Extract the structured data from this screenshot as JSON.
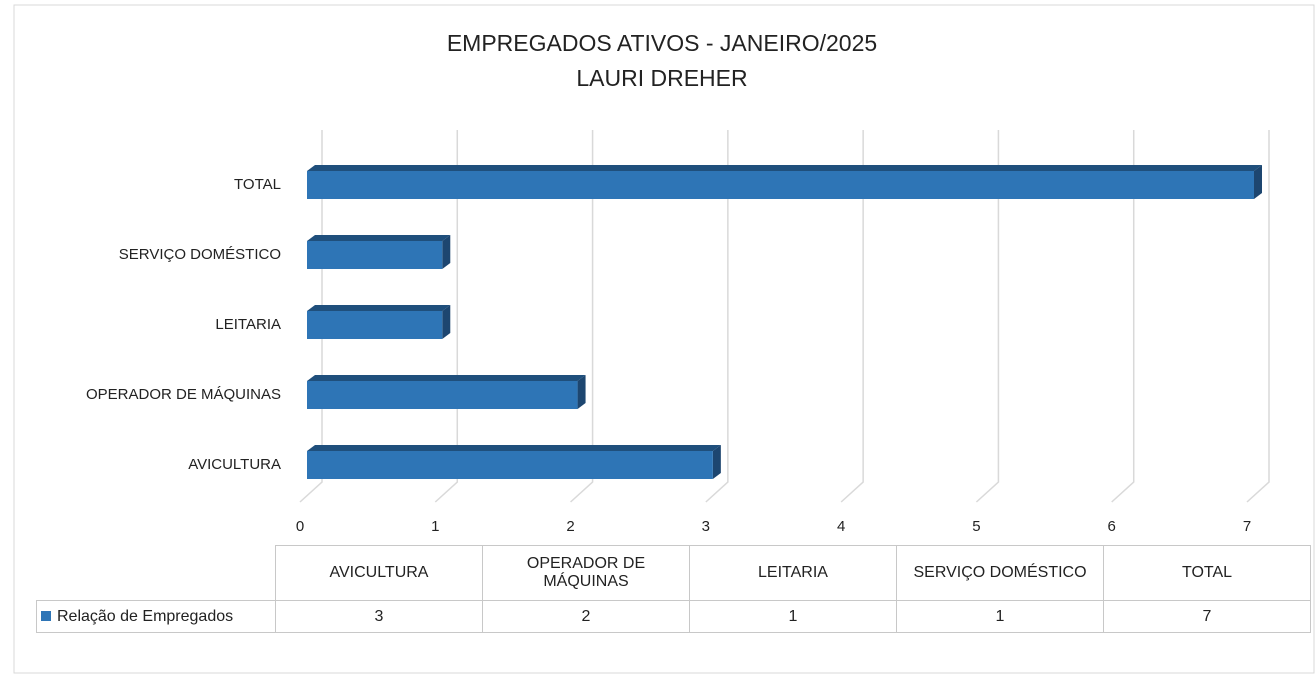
{
  "chart_data": {
    "type": "bar",
    "orientation": "horizontal",
    "title": "EMPREGADOS ATIVOS  - JANEIRO/2025",
    "subtitle": "LAURI DREHER",
    "categories": [
      "AVICULTURA",
      "OPERADOR DE MÁQUINAS",
      "LEITARIA",
      "SERVIÇO DOMÉSTICO",
      "TOTAL"
    ],
    "series": [
      {
        "name": "Relação de Empregados",
        "color": "#2e75b6",
        "values": [
          3,
          2,
          1,
          1,
          7
        ]
      }
    ],
    "xlim": [
      0,
      7
    ],
    "xticks": [
      0,
      1,
      2,
      3,
      4,
      5,
      6,
      7
    ],
    "grid": true,
    "data_table": true
  }
}
